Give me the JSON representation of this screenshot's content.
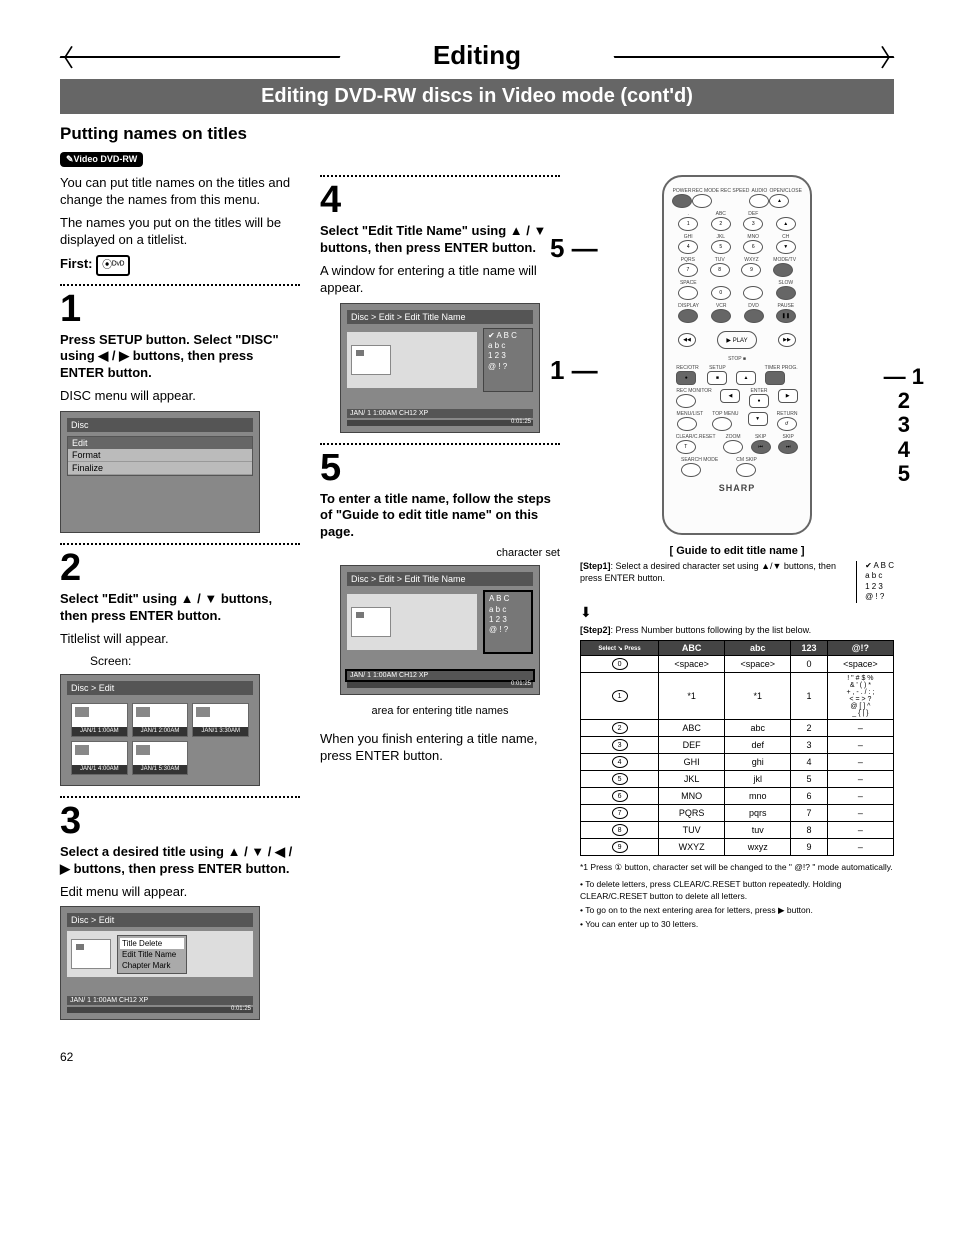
{
  "page": {
    "main_title": "Editing",
    "sub_title": "Editing DVD-RW discs in Video mode (cont'd)",
    "section_title": "Putting names on titles",
    "badge_label": "Video DVD-RW",
    "page_number": "62"
  },
  "col1": {
    "intro1": "You can put title names on the titles and change the names from this menu.",
    "intro2": "The names you put on the titles will be displayed on a titlelist.",
    "first_label": "First:",
    "step1": {
      "num": "1",
      "heading": "Press SETUP button. Select \"DISC\" using ◀ / ▶ buttons, then press ENTER button.",
      "body": "DISC menu will appear.",
      "menu_hdr": "Disc",
      "menu_items": [
        "Edit",
        "Format",
        "Finalize"
      ]
    },
    "step2": {
      "num": "2",
      "heading": "Select \"Edit\" using ▲ / ▼ buttons, then press ENTER button.",
      "body": "Titlelist will appear.",
      "caption": "Screen:",
      "menu_hdr": "Disc > Edit",
      "thumbs": [
        "JAN/1 1:00AM",
        "JAN/1 2:00AM",
        "JAN/1 3:30AM",
        "JAN/1 4:00AM",
        "JAN/1 5:30AM"
      ]
    },
    "step3": {
      "num": "3",
      "heading": "Select a desired title using ▲ / ▼ / ◀ / ▶ buttons, then press ENTER button.",
      "body": "Edit menu will appear.",
      "menu_hdr": "Disc > Edit",
      "popup": [
        "Title Delete",
        "Edit Title Name",
        "Chapter Mark"
      ],
      "status": "JAN/ 1  1:00AM  CH12    XP",
      "time": "0:01:25"
    }
  },
  "col2": {
    "step4": {
      "num": "4",
      "heading": "Select \"Edit Title Name\" using ▲ / ▼ buttons, then press ENTER button.",
      "body": "A window for entering a title name will appear.",
      "menu_hdr": "Disc > Edit > Edit Title Name",
      "charset": [
        "✔ A B C",
        "a b c",
        "1 2 3",
        "@ ! ?"
      ],
      "status": "JAN/ 1   1:00AM   CH12   XP",
      "time": "0:01:25"
    },
    "step5": {
      "num": "5",
      "heading": "To enter a title name, follow the steps of \"Guide to edit title name\" on this page.",
      "label_charset": "character set",
      "menu_hdr": "Disc > Edit > Edit Title Name",
      "charset": [
        "A B C",
        "a b c",
        "1 2 3",
        "@ ! ?"
      ],
      "status": "JAN/ 1   1:00AM   CH12   XP",
      "time": "0:01:25",
      "label_area": "area for entering title names",
      "body2": "When you finish entering a title name, press ENTER button."
    }
  },
  "remote": {
    "top_labels": [
      "POWER",
      "REC MODE REC SPEED",
      "AUDIO",
      "OPEN/CLOSE"
    ],
    "num_rows": [
      {
        "labels": [
          ".",
          "ABC",
          "DEF",
          ""
        ],
        "nums": [
          "1",
          "2",
          "3",
          ""
        ]
      },
      {
        "labels": [
          "GHI",
          "JKL",
          "MNO",
          "CH"
        ],
        "nums": [
          "4",
          "5",
          "6",
          "▲"
        ]
      },
      {
        "labels": [
          "PQRS",
          "TUV",
          "WXYZ",
          "MODE/TV"
        ],
        "nums": [
          "7",
          "8",
          "9",
          ""
        ]
      },
      {
        "labels": [
          "SPACE",
          "",
          "",
          "SLOW"
        ],
        "nums": [
          "",
          "0",
          "",
          ""
        ]
      }
    ],
    "mid_labels": [
      "DISPLAY",
      "VCR",
      "DVD",
      "PAUSE"
    ],
    "play_label": "▶ PLAY",
    "stop_label": "STOP ■",
    "nav_labels": [
      "REC/OTR",
      "SETUP",
      "",
      "TIMER PROG."
    ],
    "nav2_labels": [
      "REC MONITOR",
      "",
      "ENTER",
      ""
    ],
    "nav3_labels": [
      "MENU/LIST",
      "TOP MENU",
      "",
      "RETURN"
    ],
    "bottom_labels": [
      "CLEAR/C.RESET",
      "ZOOM",
      "SKIP",
      "SKIP"
    ],
    "bottom2_labels": [
      "SEARCH MODE",
      "CM SKIP",
      "",
      ""
    ],
    "brand": "SHARP",
    "ann_right": "1\n2\n3\n4\n5"
  },
  "guide": {
    "title": "[ Guide to edit title name ]",
    "step1_tag": "[Step1]",
    "step1_text": ": Select a desired character set using ▲/▼ buttons, then press ENTER button.",
    "step1_charset": [
      "✔ A B C",
      "a b c",
      "1 2 3",
      "@ ! ?"
    ],
    "step2_tag": "[Step2]",
    "step2_text": ": Press Number buttons following by the list below.",
    "table": {
      "headers": [
        "",
        "ABC",
        "abc",
        "123",
        "@!?"
      ],
      "diag": "Select ↘ Press",
      "rows": [
        {
          "btn": "0",
          "cells": [
            "<space>",
            "<space>",
            "0",
            "<space>"
          ]
        },
        {
          "btn": "1",
          "cells": [
            "*1",
            "*1",
            "1",
            "! \" # $ %\n& ' ( ) *\n+ , - . / : ;\n< = > ?\n@ [ ] ^\n_ { | }"
          ]
        },
        {
          "btn": "2",
          "cells": [
            "ABC",
            "abc",
            "2",
            "–"
          ]
        },
        {
          "btn": "3",
          "cells": [
            "DEF",
            "def",
            "3",
            "–"
          ]
        },
        {
          "btn": "4",
          "cells": [
            "GHI",
            "ghi",
            "4",
            "–"
          ]
        },
        {
          "btn": "5",
          "cells": [
            "JKL",
            "jkl",
            "5",
            "–"
          ]
        },
        {
          "btn": "6",
          "cells": [
            "MNO",
            "mno",
            "6",
            "–"
          ]
        },
        {
          "btn": "7",
          "cells": [
            "PQRS",
            "pqrs",
            "7",
            "–"
          ]
        },
        {
          "btn": "8",
          "cells": [
            "TUV",
            "tuv",
            "8",
            "–"
          ]
        },
        {
          "btn": "9",
          "cells": [
            "WXYZ",
            "wxyz",
            "9",
            "–"
          ]
        }
      ]
    },
    "footnote1": "*1  Press ① button, character set will be changed to the \" @!? \" mode automatically.",
    "bullets": [
      "To delete letters, press CLEAR/C.RESET button repeatedly. Holding CLEAR/C.RESET button to delete all letters.",
      "To go on to the next entering area for letters, press ▶ button.",
      "You can enter up to 30 letters."
    ]
  },
  "colors": {
    "subheader_bg": "#666666",
    "menu_bg": "#888888",
    "table_header_bg": "#444444"
  }
}
